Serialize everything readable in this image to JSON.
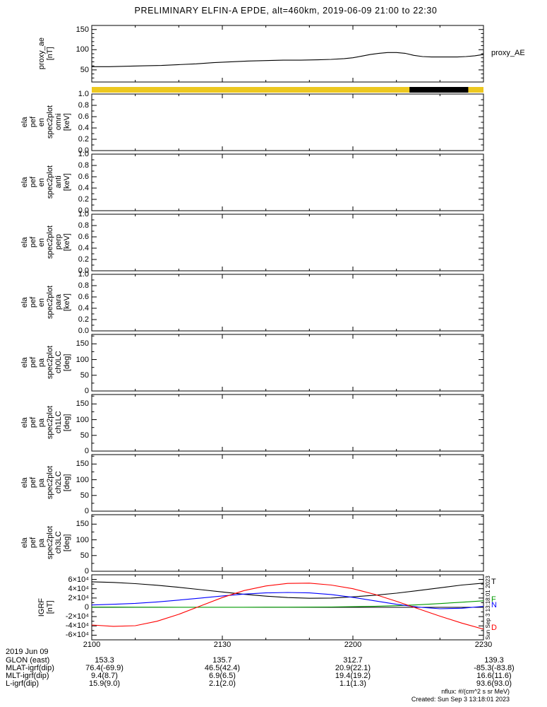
{
  "title": "PRELIMINARY ELFIN-A EPDE, alt=460km, 2019-06-09 21:00 to 22:30",
  "footer": {
    "nflux": "nflux: #/(cm^2 s sr MeV)",
    "created": "Created: Sun Sep  3 13:18:01 2023",
    "side_timestamp": "Sun Sep  3 13:18:01 2023"
  },
  "xaxis": {
    "date_label": "2019 Jun 09",
    "tick_minutes": [
      0,
      30,
      60,
      90
    ],
    "tick_labels": [
      "2100",
      "2130",
      "2200",
      "2230"
    ]
  },
  "ephemeris": {
    "rows": [
      {
        "label": "GLON (east)",
        "values": [
          "153.3",
          "135.7",
          "312.7",
          "139.3"
        ]
      },
      {
        "label": "MLAT-igrf(dip)",
        "values": [
          "76.4(-69.9)",
          "46.5(42.4)",
          "20.9(22.1)",
          "-85.3(-83.8)"
        ]
      },
      {
        "label": "MLT-igrf(dip)",
        "values": [
          "9.4(8.7)",
          "6.9(6.5)",
          "19.4(19.2)",
          "16.6(11.6)"
        ]
      },
      {
        "label": "L-igrf(dip)",
        "values": [
          "15.9(9.0)",
          "2.1(2.0)",
          "1.1(1.3)",
          "93.6(93.0)"
        ]
      }
    ]
  },
  "chart_data": [
    {
      "id": "proxy_ae",
      "type": "line",
      "ylabel": "proxy_ae\n[nT]",
      "ylim": [
        20,
        160
      ],
      "yticks": [
        50,
        100,
        150
      ],
      "ytick_labels": [
        "50",
        "100",
        "150"
      ],
      "yminor_step": 10,
      "xrange_minutes": [
        0,
        90
      ],
      "series": [
        {
          "name": "proxy_AE",
          "right_label": "proxy_AE",
          "color": "#000000",
          "x": [
            0,
            4,
            8,
            12,
            16,
            20,
            24,
            28,
            32,
            36,
            40,
            44,
            48,
            52,
            55,
            58,
            60,
            62,
            64,
            66,
            68,
            70,
            72,
            74,
            76,
            78,
            80,
            82,
            84,
            86,
            88,
            90
          ],
          "y": [
            58,
            58,
            59,
            60,
            61,
            63,
            65,
            68,
            70,
            72,
            73,
            74,
            74,
            75,
            76,
            78,
            80,
            84,
            88,
            91,
            93,
            93,
            91,
            86,
            83,
            82,
            82,
            82,
            82,
            83,
            85,
            88
          ]
        }
      ]
    },
    {
      "id": "survey_bar",
      "type": "strip",
      "segments": [
        {
          "color": "#edc81f",
          "start_min": 0,
          "end_min": 90
        },
        {
          "color": "#000000",
          "start_min": 73,
          "end_min": 86.5
        }
      ]
    },
    {
      "id": "en_spec_omni",
      "type": "empty",
      "ylabel": "ela\npef\nen\nspec2plot\nomni\n[keV]",
      "ylim": [
        0,
        1
      ],
      "yticks": [
        0,
        0.2,
        0.4,
        0.6,
        0.8,
        1.0
      ],
      "ytick_labels": [
        "0.0",
        "0.2",
        "0.4",
        "0.6",
        "0.8",
        "1.0"
      ],
      "yminor_step": 0.1
    },
    {
      "id": "en_spec_anti",
      "type": "empty",
      "ylabel": "ela\npef\nen\nspec2plot\nanti\n[keV]",
      "ylim": [
        0,
        1
      ],
      "yticks": [
        0,
        0.2,
        0.4,
        0.6,
        0.8,
        1.0
      ],
      "ytick_labels": [
        "0.0",
        "0.2",
        "0.4",
        "0.6",
        "0.8",
        "1.0"
      ],
      "yminor_step": 0.1
    },
    {
      "id": "en_spec_perp",
      "type": "empty",
      "ylabel": "ela\npef\nen\nspec2plot\nperp\n[keV]",
      "ylim": [
        0,
        1
      ],
      "yticks": [
        0,
        0.2,
        0.4,
        0.6,
        0.8,
        1.0
      ],
      "ytick_labels": [
        "0.0",
        "0.2",
        "0.4",
        "0.6",
        "0.8",
        "1.0"
      ],
      "yminor_step": 0.1
    },
    {
      "id": "en_spec_para",
      "type": "empty",
      "ylabel": "ela\npef\nen\nspec2plot\npara\n[keV]",
      "ylim": [
        0,
        1
      ],
      "yticks": [
        0,
        0.2,
        0.4,
        0.6,
        0.8,
        1.0
      ],
      "ytick_labels": [
        "0.0",
        "0.2",
        "0.4",
        "0.6",
        "0.8",
        "1.0"
      ],
      "yminor_step": 0.1
    },
    {
      "id": "pa_spec_ch0lc",
      "type": "empty",
      "ylabel": "ela\npef\npa\nspec2plot\nch0LC\n[deg]",
      "ylim": [
        0,
        180
      ],
      "yticks": [
        0,
        50,
        100,
        150
      ],
      "ytick_labels": [
        "0",
        "50",
        "100",
        "150"
      ],
      "yminor_step": 25
    },
    {
      "id": "pa_spec_ch1lc",
      "type": "empty",
      "ylabel": "ela\npef\npa\nspec2plot\nch1LC\n[deg]",
      "ylim": [
        0,
        180
      ],
      "yticks": [
        0,
        50,
        100,
        150
      ],
      "ytick_labels": [
        "0",
        "50",
        "100",
        "150"
      ],
      "yminor_step": 25
    },
    {
      "id": "pa_spec_ch2lc",
      "type": "empty",
      "ylabel": "ela\npef\npa\nspec2plot\nch2LC\n[deg]",
      "ylim": [
        0,
        180
      ],
      "yticks": [
        0,
        50,
        100,
        150
      ],
      "ytick_labels": [
        "0",
        "50",
        "100",
        "150"
      ],
      "yminor_step": 25
    },
    {
      "id": "pa_spec_ch3lc",
      "type": "empty",
      "ylabel": "ela\npef\npa\nspec2plot\nch3LC\n[deg]",
      "ylim": [
        0,
        180
      ],
      "yticks": [
        0,
        50,
        100,
        150
      ],
      "ytick_labels": [
        "0",
        "50",
        "100",
        "150"
      ],
      "yminor_step": 25
    },
    {
      "id": "igrf",
      "type": "line",
      "ylabel": "IGRF\n[nT]",
      "ylim": [
        -70000,
        70000
      ],
      "yticks": [
        -60000,
        -40000,
        -20000,
        0,
        20000,
        40000,
        60000
      ],
      "ytick_labels": [
        "-6×10⁴",
        "-4×10⁴",
        "-2×10⁴",
        "0",
        "2×10⁴",
        "4×10⁴",
        "6×10⁴"
      ],
      "yminor_step": 10000,
      "zero_line": true,
      "series": [
        {
          "name": "T",
          "right_label": "T",
          "color": "#000000",
          "x": [
            0,
            5,
            10,
            15,
            20,
            25,
            30,
            35,
            40,
            45,
            50,
            55,
            60,
            65,
            70,
            75,
            80,
            85,
            90
          ],
          "y": [
            55000,
            53500,
            51000,
            47500,
            43000,
            38000,
            33000,
            28000,
            24000,
            21000,
            19500,
            20000,
            22500,
            26000,
            30500,
            36000,
            42000,
            48000,
            52000
          ]
        },
        {
          "name": "F",
          "right_label": "F",
          "color": "#009a00",
          "x": [
            0,
            5,
            10,
            15,
            20,
            25,
            30,
            35,
            40,
            45,
            50,
            55,
            60,
            65,
            70,
            75,
            80,
            85,
            90
          ],
          "y": [
            500,
            400,
            300,
            250,
            200,
            150,
            150,
            200,
            250,
            350,
            500,
            800,
            1300,
            2200,
            3500,
            5500,
            8000,
            11000,
            14000
          ]
        },
        {
          "name": "N",
          "right_label": "N",
          "color": "#0000ff",
          "x": [
            0,
            5,
            10,
            15,
            20,
            25,
            30,
            35,
            40,
            45,
            50,
            55,
            60,
            65,
            70,
            75,
            80,
            85,
            90
          ],
          "y": [
            5000,
            6500,
            8500,
            11500,
            15500,
            20000,
            24500,
            28500,
            31000,
            32000,
            31000,
            27500,
            21500,
            14000,
            6500,
            500,
            -3000,
            -2000,
            2000
          ]
        },
        {
          "name": "D",
          "right_label": "D",
          "color": "#ff0000",
          "x": [
            0,
            5,
            10,
            15,
            20,
            25,
            30,
            35,
            40,
            45,
            50,
            55,
            60,
            65,
            70,
            75,
            80,
            85,
            90
          ],
          "y": [
            -38000,
            -41000,
            -39500,
            -30000,
            -15000,
            3000,
            21000,
            36000,
            46000,
            51500,
            52000,
            48000,
            40000,
            28000,
            13000,
            -3000,
            -19000,
            -34000,
            -47000
          ]
        }
      ]
    }
  ]
}
